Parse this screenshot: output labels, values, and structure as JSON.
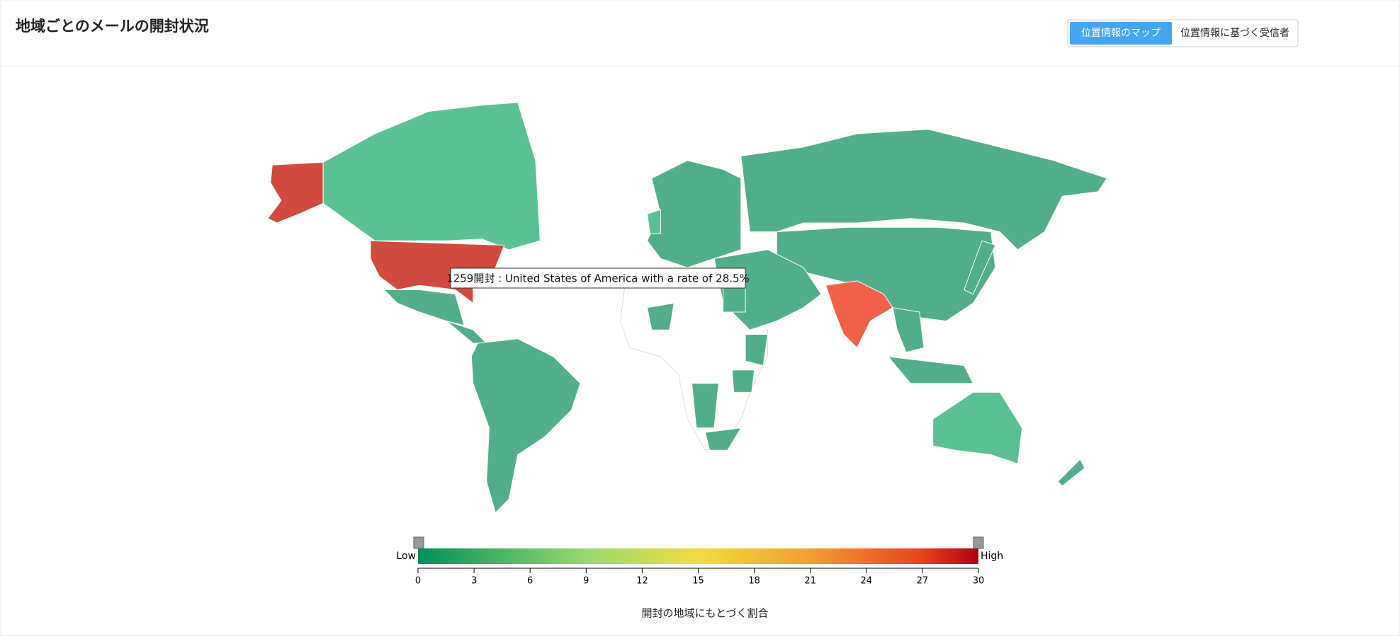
{
  "header": {
    "title": "地域ごとのメールの開封状況",
    "tabs": [
      "位置情報のマップ",
      "位置情報に基づく受信者"
    ]
  },
  "tooltip": "1259開封 : United States of America with a rate of 28.5%",
  "legend": {
    "low_label": "Low",
    "high_label": "High",
    "ticks": [
      0,
      3,
      6,
      9,
      12,
      15,
      18,
      21,
      24,
      27,
      30
    ],
    "title": "開封の地域にもとづく割合"
  }
}
